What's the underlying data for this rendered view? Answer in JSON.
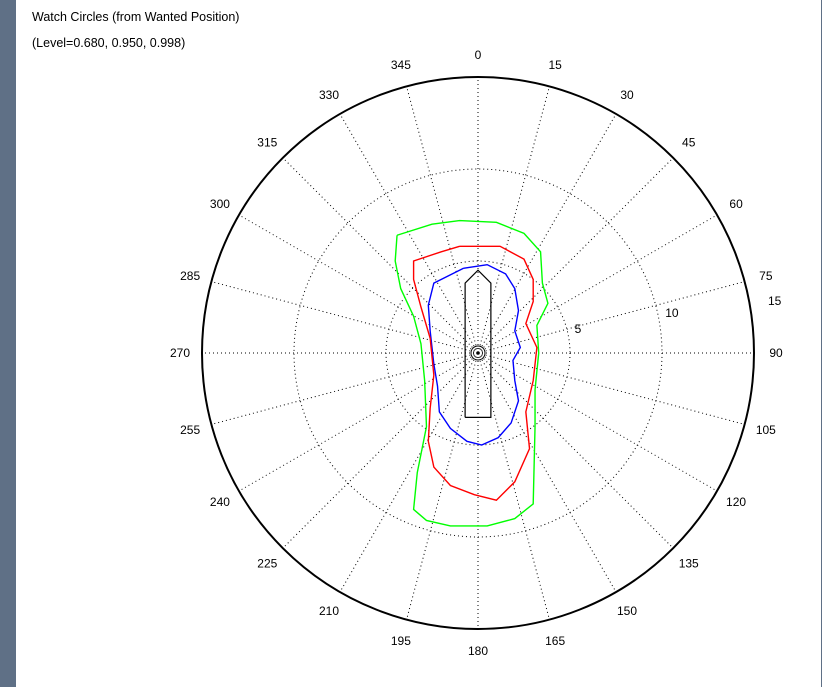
{
  "chart_data": {
    "type": "polar-line",
    "title": "Watch Circles (from Wanted Position)",
    "subtitle": "(Level=0.680, 0.950, 0.998)",
    "angle_ticks": [
      0,
      15,
      30,
      45,
      60,
      75,
      90,
      105,
      120,
      135,
      150,
      165,
      180,
      195,
      210,
      225,
      240,
      255,
      270,
      285,
      300,
      315,
      330,
      345
    ],
    "angle_unit": "degrees",
    "angle_direction": "clockwise from top",
    "radial_ticks": [
      5,
      10,
      15
    ],
    "radial_range": [
      0,
      15
    ],
    "grid": true,
    "vessel_outline": [
      [
        -0.7,
        -3.5
      ],
      [
        0.7,
        -3.5
      ],
      [
        0.7,
        3.8
      ],
      [
        0,
        4.5
      ],
      [
        -0.7,
        3.8
      ],
      [
        -0.7,
        -3.5
      ]
    ],
    "series": [
      {
        "color": "#0000ff",
        "points": [
          [
            -0.8,
            4.6
          ],
          [
            0.5,
            4.8
          ],
          [
            1.5,
            4.3
          ],
          [
            2.0,
            3.5
          ],
          [
            2.2,
            2.3
          ],
          [
            2.0,
            1.2
          ],
          [
            2.3,
            0.3
          ],
          [
            1.9,
            -0.4
          ],
          [
            2.0,
            -1.5
          ],
          [
            2.2,
            -2.6
          ],
          [
            1.8,
            -3.8
          ],
          [
            1.1,
            -4.6
          ],
          [
            0.2,
            -5.0
          ],
          [
            -0.6,
            -4.8
          ],
          [
            -1.5,
            -4.1
          ],
          [
            -2.1,
            -3.2
          ],
          [
            -2.2,
            -1.8
          ],
          [
            -2.4,
            -0.6
          ],
          [
            -2.6,
            1.2
          ],
          [
            -2.7,
            2.6
          ],
          [
            -2.4,
            3.8
          ],
          [
            -1.6,
            4.2
          ],
          [
            -0.8,
            4.6
          ]
        ]
      },
      {
        "color": "#ff0000",
        "points": [
          [
            -1.0,
            5.8
          ],
          [
            1.2,
            5.8
          ],
          [
            2.5,
            5.1
          ],
          [
            3.0,
            4.0
          ],
          [
            3.0,
            2.8
          ],
          [
            2.6,
            1.6
          ],
          [
            3.2,
            0.3
          ],
          [
            3.0,
            -1.5
          ],
          [
            2.6,
            -3.2
          ],
          [
            2.8,
            -5.2
          ],
          [
            2.0,
            -7.0
          ],
          [
            1.0,
            -8.0
          ],
          [
            -0.2,
            -7.7
          ],
          [
            -1.5,
            -7.2
          ],
          [
            -2.4,
            -6.2
          ],
          [
            -2.7,
            -4.8
          ],
          [
            -2.6,
            -3.0
          ],
          [
            -2.4,
            -1.2
          ],
          [
            -2.6,
            0.8
          ],
          [
            -3.1,
            2.5
          ],
          [
            -3.5,
            4.0
          ],
          [
            -3.5,
            5.0
          ],
          [
            -2.0,
            5.5
          ],
          [
            -1.0,
            5.8
          ]
        ]
      },
      {
        "color": "#00ff00",
        "points": [
          [
            -4.4,
            6.4
          ],
          [
            -2.5,
            7.0
          ],
          [
            -1.0,
            7.2
          ],
          [
            1.0,
            7.1
          ],
          [
            2.5,
            6.5
          ],
          [
            3.4,
            5.5
          ],
          [
            3.5,
            3.8
          ],
          [
            3.8,
            2.7
          ],
          [
            3.2,
            1.5
          ],
          [
            3.3,
            0.0
          ],
          [
            3.1,
            -2.0
          ],
          [
            3.1,
            -4.0
          ],
          [
            3.0,
            -8.2
          ],
          [
            2.0,
            -9.0
          ],
          [
            0.5,
            -9.4
          ],
          [
            -1.5,
            -9.4
          ],
          [
            -2.8,
            -9.1
          ],
          [
            -3.5,
            -8.5
          ],
          [
            -3.3,
            -6.5
          ],
          [
            -2.8,
            -4.0
          ],
          [
            -2.9,
            -1.5
          ],
          [
            -3.1,
            0.5
          ],
          [
            -3.5,
            2.0
          ],
          [
            -4.2,
            3.5
          ],
          [
            -4.5,
            5.0
          ],
          [
            -4.4,
            6.4
          ]
        ]
      }
    ]
  }
}
